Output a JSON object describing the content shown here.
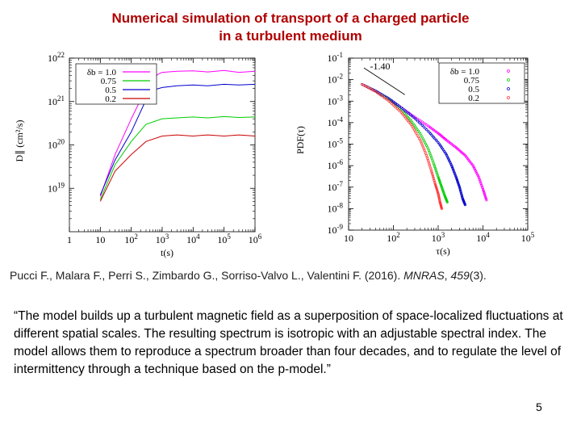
{
  "slide": {
    "title_line1": "Numerical simulation of transport of a charged particle",
    "title_line2": "in a turbulent medium",
    "citation_text": "Pucci F., Malara F., Perri S., Zimbardo G., Sorriso-Valvo L., Valentini F. (2016). ",
    "citation_journal": "MNRAS",
    "citation_sep": ", ",
    "citation_volume": "459",
    "citation_issue": "(3).",
    "quote": "“The model builds up a turbulent magnetic field as a superposition of space-localized fluctuations at different spatial scales. The resulting spectrum is isotropic with an adjustable spectral index. The model allows them to reproduce a spectrum broader than four decades, and to regulate the level of intermittency through a technique based on the p-model.”",
    "page_number": "5"
  },
  "chart_data": [
    {
      "type": "line",
      "title": "",
      "xlabel": "t(s)",
      "ylabel": "D∥ (cm²/s)",
      "xscale": "log",
      "yscale": "log",
      "xlim": [
        1,
        1000000
      ],
      "ylim": [
        1e+18,
        1e+22
      ],
      "x_ticks": [
        {
          "v": 1,
          "label": "1"
        },
        {
          "v": 10,
          "label": "10"
        },
        {
          "v": 100,
          "base": "10",
          "exp": "2"
        },
        {
          "v": 1000,
          "base": "10",
          "exp": "3"
        },
        {
          "v": 10000,
          "base": "10",
          "exp": "4"
        },
        {
          "v": 100000,
          "base": "10",
          "exp": "5"
        },
        {
          "v": 1000000,
          "base": "10",
          "exp": "6"
        }
      ],
      "y_ticks": [
        {
          "v": 1e+19,
          "base": "10",
          "exp": "19"
        },
        {
          "v": 1e+20,
          "base": "10",
          "exp": "20"
        },
        {
          "v": 1e+21,
          "base": "10",
          "exp": "21"
        },
        {
          "v": 1e+22,
          "base": "10",
          "exp": "22"
        }
      ],
      "legend": {
        "position": "top-left",
        "label_prefix": "δb = "
      },
      "series": [
        {
          "name": "1.0",
          "color": "#ff00ff",
          "points": [
            [
              10,
              6.5e+18
            ],
            [
              30,
              6e+19
            ],
            [
              100,
              4e+20
            ],
            [
              300,
              2e+21
            ],
            [
              700,
              4.2e+21
            ],
            [
              1000,
              4.7e+21
            ],
            [
              3000,
              5e+21
            ],
            [
              10000,
              5.1e+21
            ],
            [
              30000,
              4.8e+21
            ],
            [
              100000,
              5.2e+21
            ],
            [
              300000,
              4.7e+21
            ],
            [
              1000000,
              5e+21
            ]
          ]
        },
        {
          "name": "0.75",
          "color": "#00cc00",
          "points": [
            [
              10,
              5.5e+18
            ],
            [
              30,
              3.5e+19
            ],
            [
              100,
              1.2e+20
            ],
            [
              300,
              3e+20
            ],
            [
              1000,
              4e+20
            ],
            [
              3000,
              4.2e+20
            ],
            [
              10000,
              4.4e+20
            ],
            [
              30000,
              4.2e+20
            ],
            [
              100000,
              4.5e+20
            ],
            [
              300000,
              4.3e+20
            ],
            [
              1000000,
              4.4e+20
            ]
          ]
        },
        {
          "name": "0.5",
          "color": "#0000cc",
          "points": [
            [
              10,
              7e+18
            ],
            [
              30,
              4.5e+19
            ],
            [
              100,
              2e+20
            ],
            [
              300,
              1.1e+21
            ],
            [
              600,
              1.9e+21
            ],
            [
              1000,
              2.1e+21
            ],
            [
              3000,
              2.3e+21
            ],
            [
              10000,
              2.4e+21
            ],
            [
              30000,
              2.3e+21
            ],
            [
              100000,
              2.5e+21
            ],
            [
              300000,
              2.4e+21
            ],
            [
              1000000,
              2.5e+21
            ]
          ]
        },
        {
          "name": "0.2",
          "color": "#cc0000",
          "points": [
            [
              10,
              5e+18
            ],
            [
              30,
              2.5e+19
            ],
            [
              100,
              6e+19
            ],
            [
              300,
              1.2e+20
            ],
            [
              1000,
              1.6e+20
            ],
            [
              3000,
              1.7e+20
            ],
            [
              10000,
              1.6e+20
            ],
            [
              30000,
              1.7e+20
            ],
            [
              100000,
              1.6e+20
            ],
            [
              300000,
              1.7e+20
            ],
            [
              1000000,
              1.6e+20
            ]
          ]
        }
      ]
    },
    {
      "type": "scatter",
      "title": "",
      "xlabel": "τ(s)",
      "ylabel": "PDF(τ)",
      "xscale": "log",
      "yscale": "log",
      "xlim": [
        10,
        100000
      ],
      "ylim": [
        1e-09,
        0.1
      ],
      "x_ticks": [
        {
          "v": 10,
          "label": "10"
        },
        {
          "v": 100,
          "base": "10",
          "exp": "2"
        },
        {
          "v": 1000,
          "base": "10",
          "exp": "3"
        },
        {
          "v": 10000,
          "base": "10",
          "exp": "4"
        },
        {
          "v": 100000,
          "base": "10",
          "exp": "5"
        }
      ],
      "y_ticks": [
        {
          "v": 1e-09,
          "base": "10",
          "exp": "-9"
        },
        {
          "v": 1e-08,
          "base": "10",
          "exp": "-8"
        },
        {
          "v": 1e-07,
          "base": "10",
          "exp": "-7"
        },
        {
          "v": 1e-06,
          "base": "10",
          "exp": "-6"
        },
        {
          "v": 1e-05,
          "base": "10",
          "exp": "-5"
        },
        {
          "v": 0.0001,
          "base": "10",
          "exp": "-4"
        },
        {
          "v": 0.001,
          "base": "10",
          "exp": "-3"
        },
        {
          "v": 0.01,
          "base": "10",
          "exp": "-2"
        },
        {
          "v": 0.1,
          "base": "10",
          "exp": "-1"
        }
      ],
      "legend": {
        "position": "top-right",
        "label_prefix": "δb = "
      },
      "annotation": {
        "label": "-1.40",
        "from": [
          22,
          0.035
        ],
        "to": [
          180,
          0.002
        ],
        "label_at": [
          30,
          0.03
        ]
      },
      "series": [
        {
          "name": "1.0",
          "color": "#ff00ff",
          "points": [
            [
              20,
              0.006
            ],
            [
              40,
              0.003
            ],
            [
              80,
              0.0012
            ],
            [
              150,
              0.0005
            ],
            [
              300,
              0.00018
            ],
            [
              600,
              7e-05
            ],
            [
              1000,
              3.2e-05
            ],
            [
              1500,
              1.6e-05
            ],
            [
              2500,
              7e-06
            ],
            [
              4000,
              3e-06
            ],
            [
              6000,
              1e-06
            ],
            [
              8000,
              3e-07
            ],
            [
              10000,
              8e-08
            ],
            [
              12000,
              2.5e-08
            ]
          ]
        },
        {
          "name": "0.75",
          "color": "#00cc00",
          "points": [
            [
              20,
              0.006
            ],
            [
              40,
              0.003
            ],
            [
              80,
              0.0012
            ],
            [
              150,
              0.0004
            ],
            [
              250,
              0.00012
            ],
            [
              400,
              3e-05
            ],
            [
              600,
              6e-06
            ],
            [
              800,
              1.2e-06
            ],
            [
              1000,
              3e-07
            ],
            [
              1200,
              1e-07
            ],
            [
              1400,
              4e-08
            ],
            [
              1600,
              2e-08
            ]
          ]
        },
        {
          "name": "0.5",
          "color": "#0000cc",
          "points": [
            [
              20,
              0.006
            ],
            [
              40,
              0.003
            ],
            [
              80,
              0.0013
            ],
            [
              150,
              0.0005
            ],
            [
              300,
              0.00016
            ],
            [
              600,
              4e-05
            ],
            [
              1000,
              1.2e-05
            ],
            [
              1500,
              3.5e-06
            ],
            [
              2000,
              1e-06
            ],
            [
              2500,
              3e-07
            ],
            [
              3000,
              1e-07
            ],
            [
              3500,
              3e-08
            ],
            [
              4000,
              1.5e-08
            ]
          ]
        },
        {
          "name": "0.2",
          "color": "#ff3333",
          "points": [
            [
              20,
              0.006
            ],
            [
              40,
              0.0028
            ],
            [
              80,
              0.001
            ],
            [
              150,
              0.0003
            ],
            [
              250,
              8e-05
            ],
            [
              400,
              1.5e-05
            ],
            [
              550,
              3e-06
            ],
            [
              700,
              6e-07
            ],
            [
              850,
              1.5e-07
            ],
            [
              1000,
              5e-08
            ],
            [
              1100,
              2e-08
            ],
            [
              1200,
              1e-08
            ]
          ]
        }
      ]
    }
  ]
}
